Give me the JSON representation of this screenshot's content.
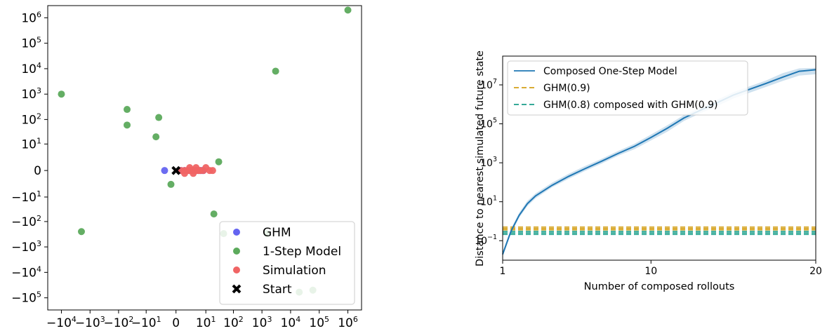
{
  "chart_data": [
    {
      "type": "scatter",
      "axes": {
        "xscale": "symlog",
        "yscale": "symlog",
        "xlim": [
          -30000,
          3000000
        ],
        "ylim": [
          -300000,
          3000000
        ],
        "grid": false
      },
      "x_ticks": [
        {
          "v": -10000,
          "base": "−10",
          "exp": "4"
        },
        {
          "v": -1000,
          "base": "−10",
          "exp": "3"
        },
        {
          "v": -100,
          "base": "−10",
          "exp": "2"
        },
        {
          "v": -10,
          "base": "−10",
          "exp": "1"
        },
        {
          "v": 0,
          "base": "0",
          "exp": ""
        },
        {
          "v": 10,
          "base": "10",
          "exp": "1"
        },
        {
          "v": 100,
          "base": "10",
          "exp": "2"
        },
        {
          "v": 1000,
          "base": "10",
          "exp": "3"
        },
        {
          "v": 10000,
          "base": "10",
          "exp": "4"
        },
        {
          "v": 100000,
          "base": "10",
          "exp": "5"
        },
        {
          "v": 1000000,
          "base": "10",
          "exp": "6"
        }
      ],
      "y_ticks": [
        {
          "v": 1000000,
          "base": "10",
          "exp": "6"
        },
        {
          "v": 100000,
          "base": "10",
          "exp": "5"
        },
        {
          "v": 10000,
          "base": "10",
          "exp": "4"
        },
        {
          "v": 1000,
          "base": "10",
          "exp": "3"
        },
        {
          "v": 100,
          "base": "10",
          "exp": "2"
        },
        {
          "v": 10,
          "base": "10",
          "exp": "1"
        },
        {
          "v": 0,
          "base": "0",
          "exp": ""
        },
        {
          "v": -10,
          "base": "−10",
          "exp": "1"
        },
        {
          "v": -100,
          "base": "−10",
          "exp": "2"
        },
        {
          "v": -1000,
          "base": "−10",
          "exp": "3"
        },
        {
          "v": -10000,
          "base": "−10",
          "exp": "4"
        },
        {
          "v": -100000,
          "base": "−10",
          "exp": "5"
        }
      ],
      "legend": {
        "position": "lower-right",
        "entries": [
          {
            "label": "GHM",
            "color": "#6464f0",
            "marker": "circle"
          },
          {
            "label": "1-Step Model",
            "color": "#5caa5c",
            "marker": "circle"
          },
          {
            "label": "Simulation",
            "color": "#f06464",
            "marker": "circle"
          },
          {
            "label": "Start",
            "color": "#000000",
            "marker": "x"
          }
        ]
      },
      "series": [
        {
          "name": "1-Step Model",
          "color": "#5caa5c",
          "points": [
            [
              1000000,
              2000000
            ],
            [
              -10000,
              1000
            ],
            [
              3000,
              8000
            ],
            [
              -50,
              250
            ],
            [
              -50,
              60
            ],
            [
              -3,
              120
            ],
            [
              -4,
              20
            ],
            [
              30,
              1.2
            ],
            [
              -0.5,
              -2.5
            ],
            [
              20,
              -50
            ],
            [
              -2000,
              -250
            ],
            [
              45,
              -300
            ],
            [
              1500,
              -300
            ],
            [
              60000,
              -50000
            ],
            [
              20000,
              -60000
            ]
          ]
        },
        {
          "name": "GHM",
          "color": "#6464f0",
          "points": [
            [
              -1.5,
              0
            ],
            [
              0.5,
              0
            ],
            [
              1,
              0
            ],
            [
              2,
              0
            ],
            [
              3,
              0
            ],
            [
              4,
              0
            ],
            [
              5,
              0
            ],
            [
              6,
              0
            ],
            [
              7,
              0
            ],
            [
              8,
              0
            ]
          ]
        },
        {
          "name": "Simulation",
          "color": "#f06464",
          "points": [
            [
              0.5,
              0
            ],
            [
              1,
              0
            ],
            [
              1.5,
              0
            ],
            [
              2,
              0
            ],
            [
              2.5,
              0
            ],
            [
              3,
              0
            ],
            [
              3.5,
              0
            ],
            [
              4,
              0
            ],
            [
              5,
              0
            ],
            [
              6,
              0
            ],
            [
              8,
              0
            ],
            [
              10,
              0.3
            ],
            [
              14,
              0
            ],
            [
              18,
              0
            ],
            [
              3,
              -0.3
            ],
            [
              2,
              0.3
            ],
            [
              1,
              -0.3
            ],
            [
              4,
              0.3
            ]
          ]
        }
      ],
      "start": [
        0,
        0
      ]
    },
    {
      "type": "line",
      "xlabel": "Number of composed rollouts",
      "ylabel": "Distance to nearest simulated future state",
      "axes": {
        "xscale": "linear",
        "yscale": "log",
        "xlim": [
          1,
          20
        ],
        "ylim": [
          0.01,
          300000000
        ],
        "grid": false
      },
      "x_ticks": [
        {
          "v": 1,
          "label": "1"
        },
        {
          "v": 10,
          "label": "10"
        },
        {
          "v": 20,
          "label": "20"
        }
      ],
      "y_ticks": [
        {
          "v": 0.1,
          "base": "10",
          "exp": "−1"
        },
        {
          "v": 10,
          "base": "10",
          "exp": "1"
        },
        {
          "v": 1000,
          "base": "10",
          "exp": "3"
        },
        {
          "v": 100000,
          "base": "10",
          "exp": "5"
        },
        {
          "v": 10000000,
          "base": "10",
          "exp": "7"
        }
      ],
      "legend": {
        "position": "upper-left",
        "entries": [
          {
            "label": "Composed One-Step Model",
            "color": "#1f77b4",
            "style": "solid"
          },
          {
            "label": "GHM(0.9)",
            "color": "#d4a017",
            "style": "dashed"
          },
          {
            "label": "GHM(0.8) composed with GHM(0.9)",
            "color": "#1a9e8a",
            "style": "dashed"
          }
        ]
      },
      "series": [
        {
          "name": "Composed One-Step Model",
          "color": "#1f77b4",
          "style": "solid",
          "x": [
            1,
            1.5,
            2,
            2.5,
            3,
            4,
            5,
            6,
            7,
            8,
            9,
            10,
            11,
            12,
            13,
            14,
            15,
            16,
            17,
            18,
            19,
            20
          ],
          "y": [
            0.02,
            0.3,
            2,
            8,
            20,
            70,
            200,
            500,
            1200,
            3000,
            7000,
            20000,
            60000,
            200000,
            500000,
            1200000,
            3000000,
            6000000,
            12000000,
            25000000,
            50000000,
            60000000
          ],
          "band_low": [
            0.015,
            0.22,
            1.5,
            6,
            15,
            55,
            150,
            380,
            900,
            2300,
            5000,
            14000,
            40000,
            140000,
            350000,
            800000,
            2000000,
            4000000,
            8000000,
            16000000,
            30000000,
            35000000
          ],
          "band_high": [
            0.027,
            0.4,
            2.7,
            11,
            27,
            95,
            270,
            680,
            1600,
            4000,
            9500,
            28000,
            85000,
            280000,
            700000,
            1700000,
            4200000,
            8500000,
            17000000,
            40000000,
            70000000,
            75000000
          ]
        },
        {
          "name": "GHM(0.9)",
          "color": "#d4a017",
          "style": "dashed",
          "levels": [
            0.5,
            0.42,
            0.36
          ]
        },
        {
          "name": "GHM(0.8) composed with GHM(0.9)",
          "color": "#1a9e8a",
          "style": "dashed",
          "levels": [
            0.3,
            0.25,
            0.21
          ]
        }
      ]
    }
  ]
}
